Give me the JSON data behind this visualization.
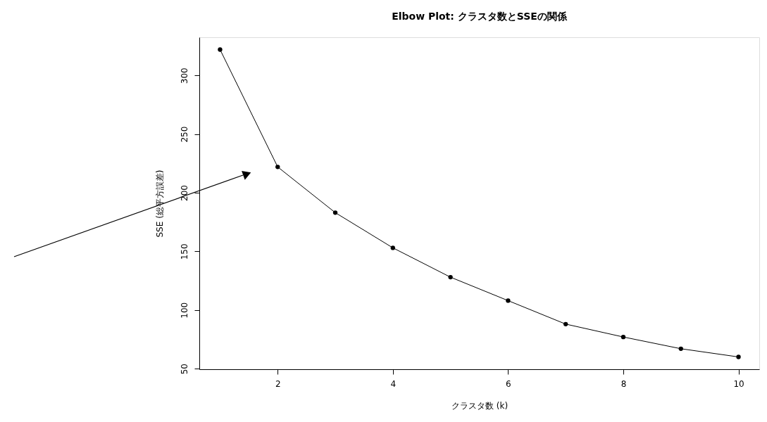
{
  "chart_data": {
    "type": "line",
    "title": "Elbow Plot: クラスタ数とSSEの関係",
    "xlabel": "クラスタ数 (k)",
    "ylabel": "SSE (総平方誤差)",
    "x": [
      1,
      2,
      3,
      4,
      5,
      6,
      7,
      8,
      9,
      10
    ],
    "series": [
      {
        "color": "#000000",
        "values": [
          322,
          222,
          183,
          153,
          128,
          108,
          88,
          77,
          67,
          60
        ]
      }
    ],
    "xlim": [
      0.64,
      10.36
    ],
    "ylim": [
      49.5,
      332.5
    ],
    "xticks": [
      2,
      4,
      6,
      8,
      10
    ],
    "yticks": [
      50,
      100,
      150,
      200,
      250,
      300
    ],
    "grid": false,
    "marker": "circle",
    "line_style": "solid"
  }
}
